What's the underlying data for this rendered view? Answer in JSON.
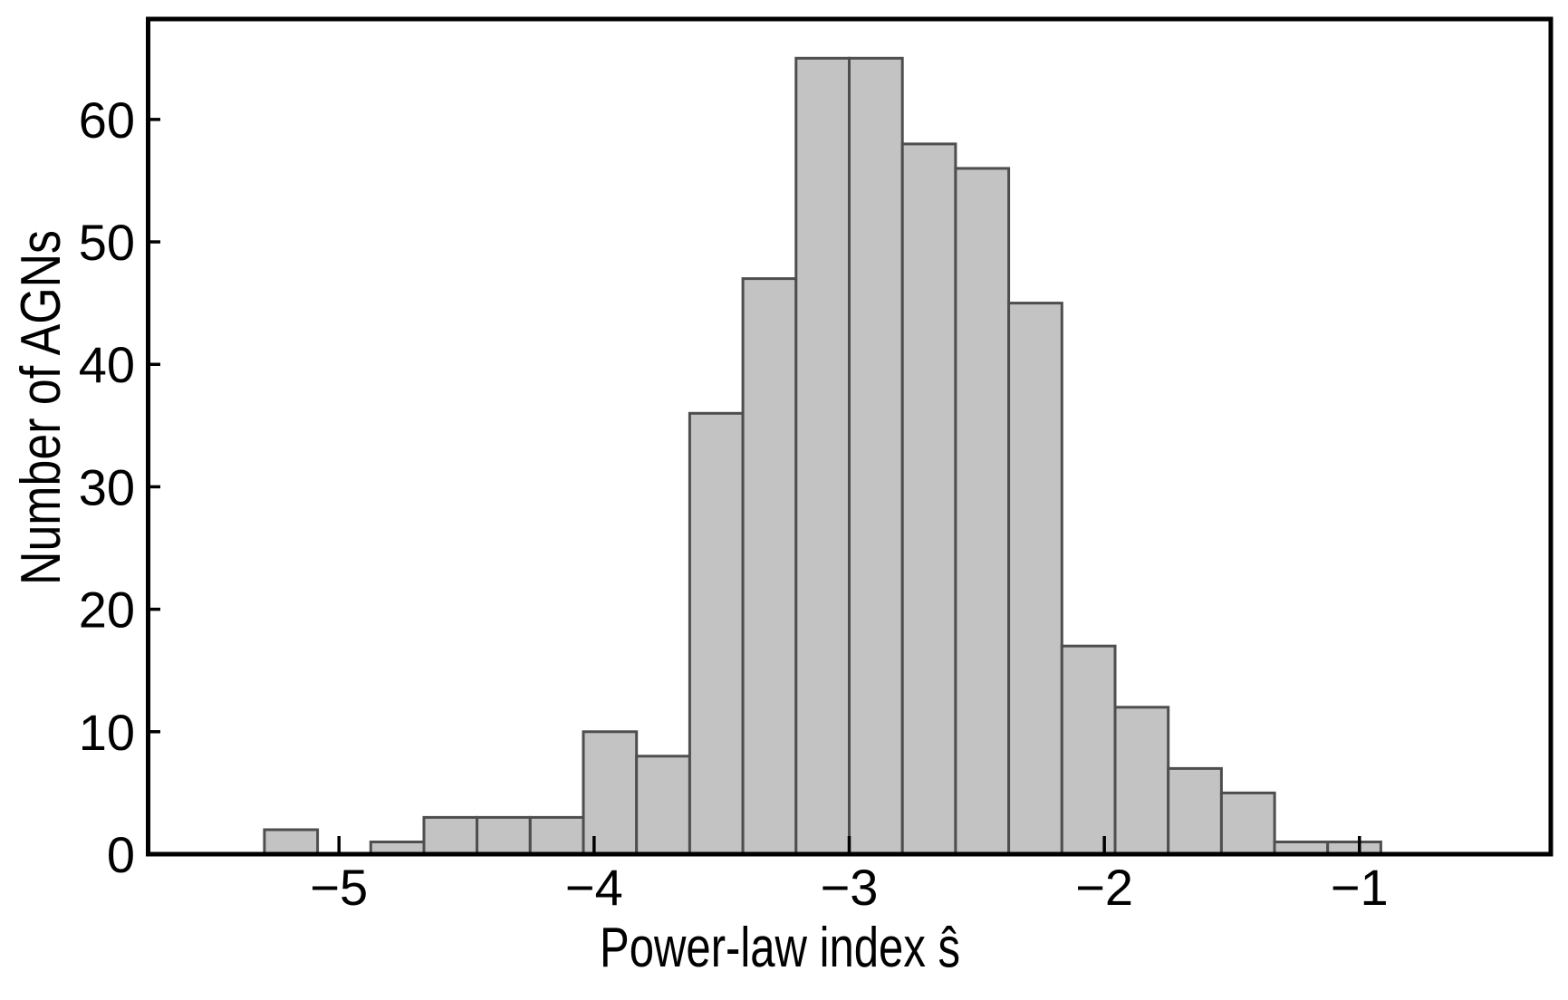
{
  "chart_data": {
    "type": "bar",
    "subtype": "histogram",
    "title": "",
    "xlabel": "Power-law index ŝ",
    "ylabel": "Number of AGNs",
    "bins": {
      "start": -5.2924,
      "width": 0.2084
    },
    "counts": [
      2,
      0,
      1,
      3,
      3,
      3,
      10,
      8,
      36,
      47,
      65,
      65,
      58,
      56,
      45,
      17,
      12,
      7,
      5,
      1,
      1
    ],
    "xlim": [
      -5.75,
      -0.25
    ],
    "ylim": [
      0,
      68.2
    ],
    "xticks": [
      -5,
      -4,
      -3,
      -2,
      -1
    ],
    "xtick_labels": [
      "−5",
      "−4",
      "−3",
      "−2",
      "−1"
    ],
    "yticks": [
      0,
      10,
      20,
      30,
      40,
      50,
      60
    ],
    "ytick_labels": [
      "0",
      "10",
      "20",
      "30",
      "40",
      "50",
      "60"
    ],
    "grid": false,
    "legend": null,
    "colors": {
      "bar_fill": "#c3c3c3",
      "bar_edge": "#4e4e4e",
      "axis": "#000000",
      "text": "#000000",
      "background": "#ffffff"
    }
  }
}
